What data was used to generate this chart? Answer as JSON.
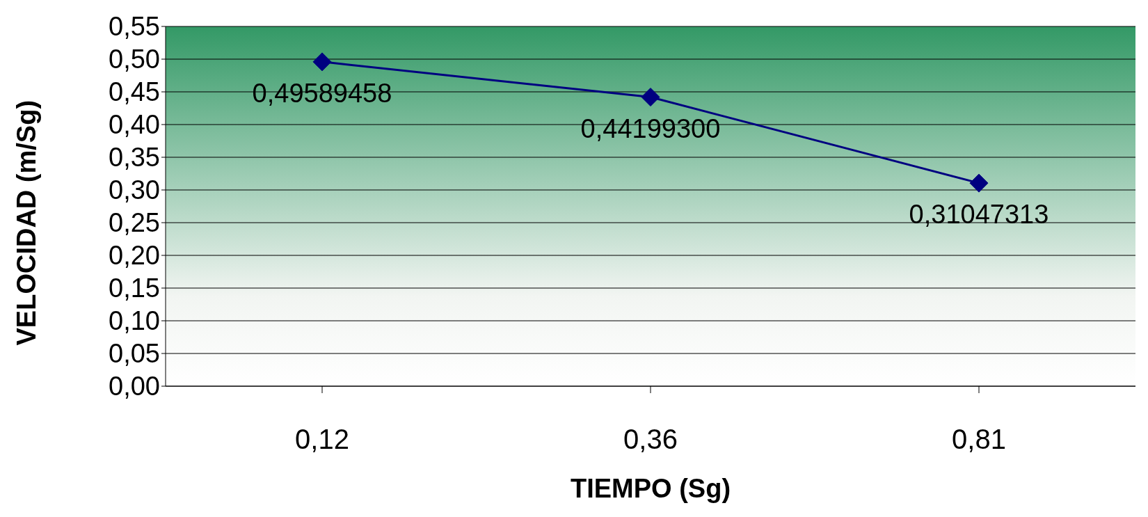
{
  "chart_data": {
    "type": "line",
    "xlabel": "TIEMPO (Sg)",
    "ylabel": "VELOCIDAD (m/Sg)",
    "categories": [
      "0,12",
      "0,36",
      "0,81"
    ],
    "series": [
      {
        "color": "#000080",
        "values": [
          0.49589458,
          0.441993,
          0.31047313
        ],
        "value_labels": [
          "0,49589458",
          "0,44199300",
          "0,31047313"
        ]
      }
    ],
    "ylim": [
      0,
      0.55
    ],
    "yticks": [
      {
        "value": 0,
        "label": "0,00"
      },
      {
        "value": 0.05,
        "label": "0,05"
      },
      {
        "value": 0.1,
        "label": "0,10"
      },
      {
        "value": 0.15,
        "label": "0,15"
      },
      {
        "value": 0.2,
        "label": "0,20"
      },
      {
        "value": 0.25,
        "label": "0,25"
      },
      {
        "value": 0.3,
        "label": "0,30"
      },
      {
        "value": 0.35,
        "label": "0,35"
      },
      {
        "value": 0.4,
        "label": "0,40"
      },
      {
        "value": 0.45,
        "label": "0,45"
      },
      {
        "value": 0.5,
        "label": "0,50"
      },
      {
        "value": 0.55,
        "label": "0,55"
      }
    ],
    "grid": "y",
    "marker": "diamond",
    "line_style": "solid"
  }
}
